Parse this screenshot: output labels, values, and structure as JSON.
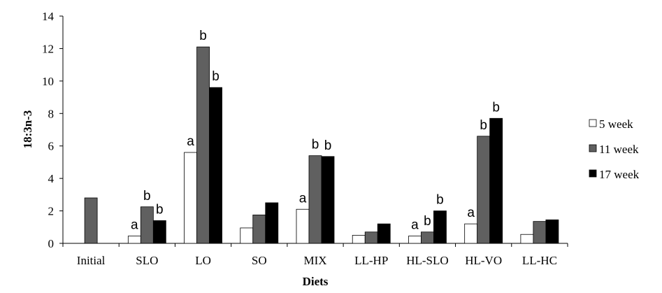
{
  "chart_data": {
    "type": "bar",
    "title": "",
    "xlabel": "Diets",
    "ylabel": "18:3n-3",
    "ylim": [
      0,
      14
    ],
    "yticks": [
      0,
      2,
      4,
      6,
      8,
      10,
      12,
      14
    ],
    "grid": false,
    "legend_position": "right",
    "categories": [
      "Initial",
      "SLO",
      "LO",
      "SO",
      "MIX",
      "LL-HP",
      "HL-SLO",
      "HL-VO",
      "LL-HC"
    ],
    "series": [
      {
        "name": "5 week",
        "color": "#ffffff",
        "values": [
          null,
          0.45,
          5.6,
          0.95,
          2.1,
          0.5,
          0.45,
          1.2,
          0.55
        ],
        "labels": [
          "",
          "a",
          "a",
          "",
          "a",
          "",
          "a",
          "a",
          ""
        ]
      },
      {
        "name": "11 week",
        "color": "#606060",
        "values": [
          2.8,
          2.25,
          12.1,
          1.75,
          5.4,
          0.7,
          0.7,
          6.6,
          1.35
        ],
        "labels": [
          "",
          "b",
          "b",
          "",
          "b",
          "",
          "b",
          "b",
          ""
        ]
      },
      {
        "name": "17 week",
        "color": "#000000",
        "values": [
          null,
          1.4,
          9.6,
          2.5,
          5.35,
          1.2,
          2.0,
          7.7,
          1.45
        ],
        "labels": [
          "",
          "b",
          "b",
          "",
          "b",
          "",
          "b",
          "b",
          ""
        ]
      }
    ]
  }
}
